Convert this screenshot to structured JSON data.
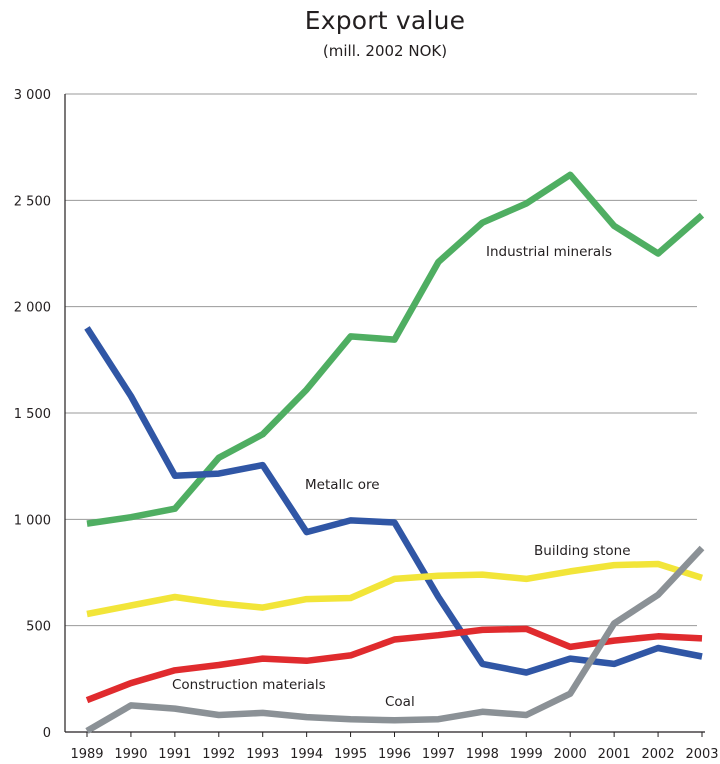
{
  "chart_data": {
    "type": "line",
    "title": "Export value",
    "subtitle": "(mill. 2002 NOK)",
    "xlabel": "",
    "ylabel": "",
    "x": [
      "1989",
      "1990",
      "1991",
      "1992",
      "1993",
      "1994",
      "1995",
      "1996",
      "1997",
      "1998",
      "1999",
      "2000",
      "2001",
      "2002",
      "2003"
    ],
    "ylim": [
      0,
      3000
    ],
    "yticks": [
      0,
      500,
      1000,
      1500,
      2000,
      2500,
      3000
    ],
    "ytick_labels": [
      "0",
      "500",
      "1 000",
      "1 500",
      "2 000",
      "2 500",
      "3 000"
    ],
    "grid": "horizontal",
    "series": [
      {
        "name": "Industrial minerals",
        "color": "#4fae62",
        "values": [
          980,
          1010,
          1050,
          1290,
          1400,
          1610,
          1860,
          1845,
          2210,
          2395,
          2485,
          2620,
          2380,
          2250,
          2430
        ]
      },
      {
        "name": "Metallc ore",
        "color": "#3056a5",
        "values": [
          1900,
          1580,
          1205,
          1215,
          1255,
          940,
          995,
          985,
          635,
          320,
          280,
          345,
          320,
          395,
          355
        ]
      },
      {
        "name": "Building stone",
        "color": "#f2e539",
        "values": [
          555,
          595,
          635,
          605,
          585,
          625,
          630,
          720,
          735,
          740,
          720,
          755,
          785,
          790,
          725
        ]
      },
      {
        "name": "Construction materials",
        "color": "#e02b2e",
        "values": [
          150,
          230,
          290,
          315,
          345,
          335,
          360,
          435,
          455,
          480,
          485,
          400,
          430,
          450,
          440
        ]
      },
      {
        "name": "Coal",
        "color": "#8b9196",
        "values": [
          5,
          125,
          110,
          80,
          90,
          70,
          60,
          55,
          60,
          95,
          80,
          180,
          510,
          645,
          865
        ]
      }
    ]
  }
}
